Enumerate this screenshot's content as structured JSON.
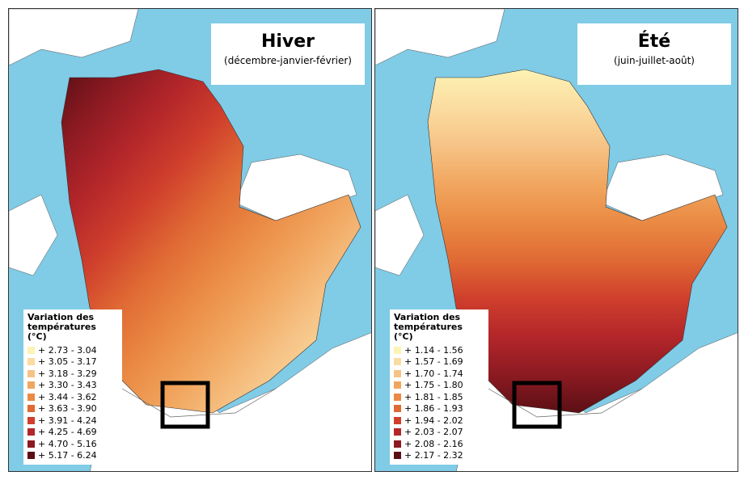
{
  "panels": [
    {
      "title": "Hiver",
      "subtitle": "(décembre-janvier-février)",
      "legend": {
        "title": "Variation des températures (°C)",
        "items": [
          {
            "label": "+ 2.73 - 3.04",
            "color": "#fdf3b4"
          },
          {
            "label": "+ 3.05 - 3.17",
            "color": "#fbdca0"
          },
          {
            "label": "+ 3.18 - 3.29",
            "color": "#f6c386"
          },
          {
            "label": "+ 3.30 - 3.43",
            "color": "#f1a65f"
          },
          {
            "label": "+ 3.44 - 3.62",
            "color": "#ea8a44"
          },
          {
            "label": "+ 3.63 - 3.90",
            "color": "#e06a34"
          },
          {
            "label": "+ 3.91 - 4.24",
            "color": "#cf3f2c"
          },
          {
            "label": "+ 4.25 - 4.69",
            "color": "#b3262a"
          },
          {
            "label": "+ 4.70 - 5.16",
            "color": "#8c1a22"
          },
          {
            "label": "+ 5.17 - 6.24",
            "color": "#5b0f15"
          }
        ]
      }
    },
    {
      "title": "Été",
      "subtitle": "(juin-juillet-août)",
      "legend": {
        "title": "Variation des températures (°C)",
        "items": [
          {
            "label": "+ 1.14 - 1.56",
            "color": "#fdf3b4"
          },
          {
            "label": "+ 1.57 - 1.69",
            "color": "#fbdca0"
          },
          {
            "label": "+ 1.70 - 1.74",
            "color": "#f6c386"
          },
          {
            "label": "+ 1.75 - 1.80",
            "color": "#f1a65f"
          },
          {
            "label": "+ 1.81 - 1.85",
            "color": "#ea8a44"
          },
          {
            "label": "+ 1.86 - 1.93",
            "color": "#e06a34"
          },
          {
            "label": "+ 1.94 - 2.02",
            "color": "#cf3f2c"
          },
          {
            "label": "+ 2.03 - 2.07",
            "color": "#b3262a"
          },
          {
            "label": "+ 2.08 - 2.16",
            "color": "#8c1a22"
          },
          {
            "label": "+ 2.17 - 2.32",
            "color": "#5b0f15"
          }
        ]
      }
    }
  ]
}
